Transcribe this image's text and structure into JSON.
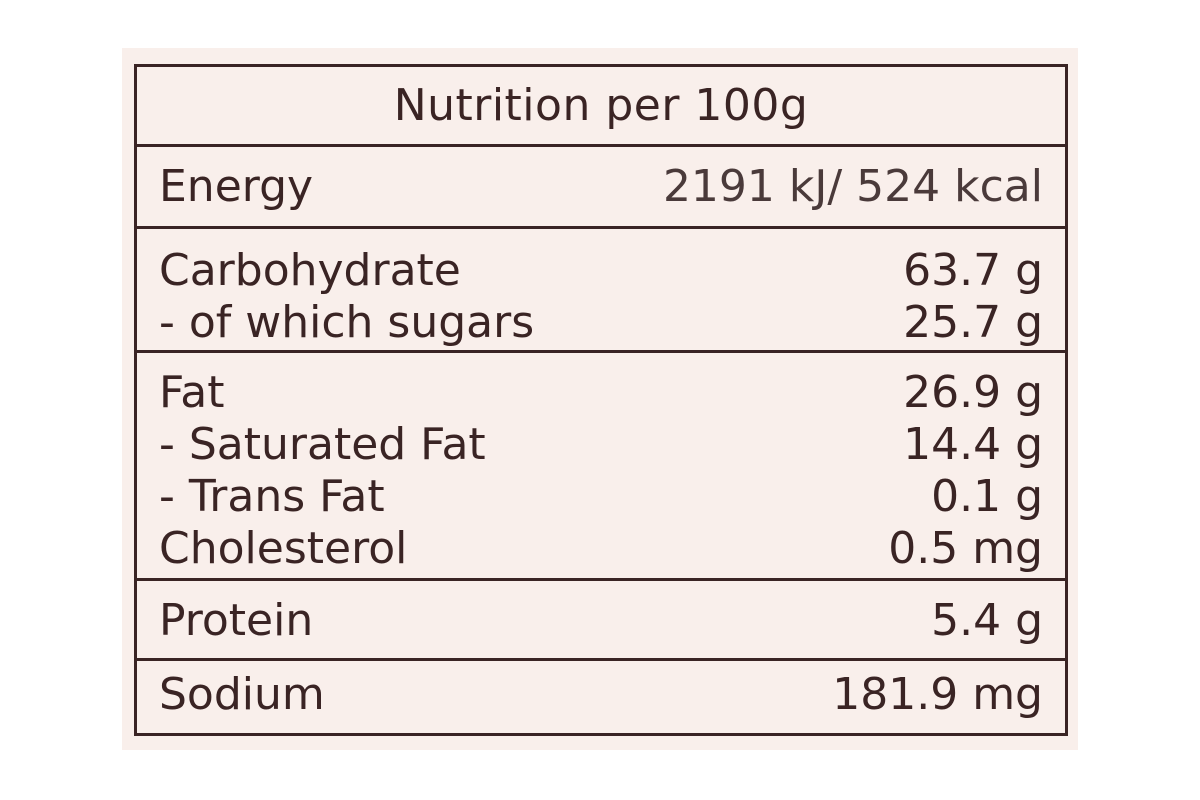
{
  "title": "Nutrition per 100g",
  "rows": {
    "energy": {
      "label": "Energy",
      "value": "2191 kJ/ 524 kcal"
    },
    "carbohydrate": {
      "label": "Carbohydrate",
      "value": "63.7 g"
    },
    "sugars": {
      "label": "- of which sugars",
      "value": "25.7 g"
    },
    "fat": {
      "label": "Fat",
      "value": "26.9 g"
    },
    "saturated_fat": {
      "label": "- Saturated Fat",
      "value": "14.4 g"
    },
    "trans_fat": {
      "label": "- Trans Fat",
      "value": "0.1 g"
    },
    "cholesterol": {
      "label": "Cholesterol",
      "value": "0.5 mg"
    },
    "protein": {
      "label": "Protein",
      "value": "5.4 g"
    },
    "sodium": {
      "label": "Sodium",
      "value": "181.9 mg"
    }
  },
  "colors": {
    "background": "#f9efeb",
    "ink": "#3a2424"
  }
}
